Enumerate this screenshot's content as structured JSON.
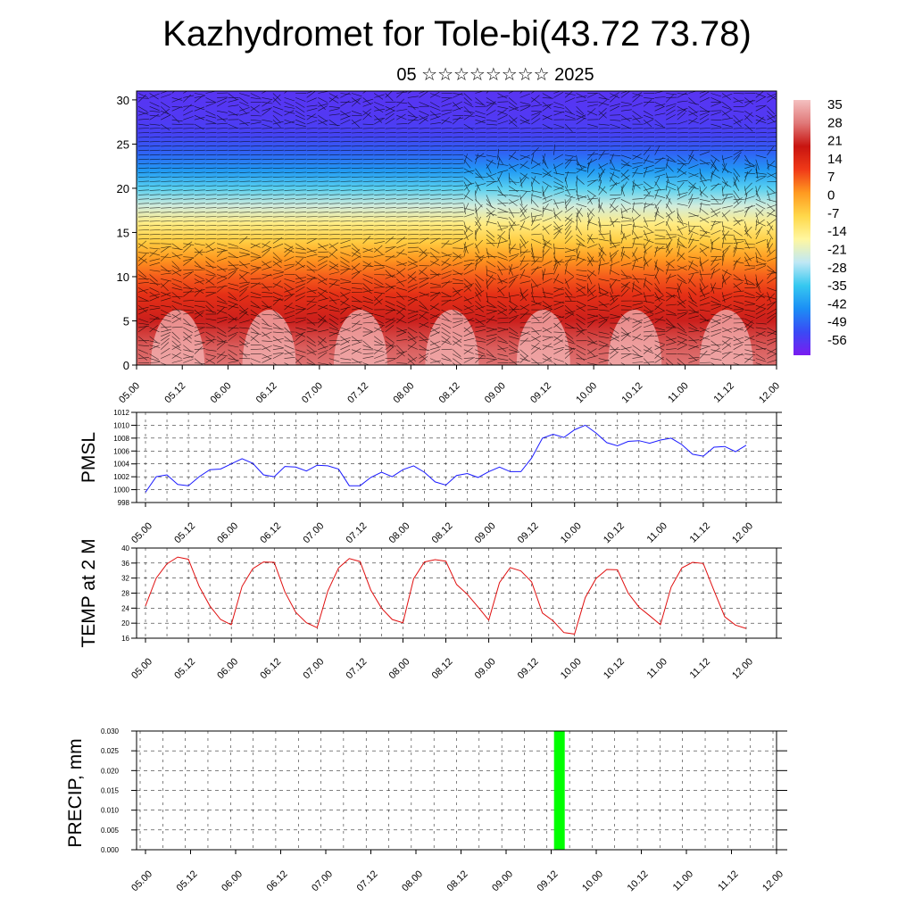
{
  "title": "Kazhydromet for Tole-bi(43.72 73.78)",
  "subtitle": "05 ☆☆☆☆☆☆☆☆ 2025",
  "time_labels": [
    "05.00",
    "05.12",
    "06.00",
    "06.12",
    "07.00",
    "07.12",
    "08.00",
    "08.12",
    "09.00",
    "09.12",
    "10.00",
    "10.12",
    "11.00",
    "11.12",
    "12.00"
  ],
  "chart_data": [
    {
      "type": "heatmap",
      "title": "",
      "ylabel": "",
      "ylim": [
        0,
        31
      ],
      "yticks": [
        "0",
        "5",
        "10",
        "15",
        "20",
        "25",
        "30"
      ],
      "colorbar": {
        "labels": [
          "35",
          "28",
          "21",
          "14",
          "7",
          "0",
          "-7",
          "-14",
          "-21",
          "-28",
          "-35",
          "-42",
          "-49",
          "-56"
        ],
        "range": [
          -63,
          42
        ],
        "colors": [
          "#7a1cf0",
          "#3a4af5",
          "#1c8ef5",
          "#36c8f0",
          "#bfe8f5",
          "#fff7a0",
          "#ffd84a",
          "#ff9a20",
          "#f03a18",
          "#c81410",
          "#e07878",
          "#f4c0c0"
        ]
      },
      "profile_description_levels": {
        "heights": [
          0,
          2,
          5,
          8,
          10,
          12,
          14,
          16,
          18,
          20,
          22,
          24,
          26,
          28,
          31
        ],
        "temps": [
          32,
          30,
          24,
          16,
          10,
          4,
          -4,
          -12,
          -22,
          -32,
          -42,
          -50,
          -55,
          -57,
          -58
        ]
      },
      "wind_barbs": "dense black barbs overlaid"
    },
    {
      "type": "line",
      "ylabel": "PMSL",
      "ylim": [
        998,
        1012
      ],
      "yticks": [
        "998",
        "1000",
        "1002",
        "1004",
        "1006",
        "1008",
        "1010",
        "1012"
      ],
      "color": "#1a1aff",
      "x": [
        "05.00",
        "05.03",
        "05.06",
        "05.09",
        "05.12",
        "05.15",
        "05.18",
        "05.21",
        "06.00",
        "06.03",
        "06.06",
        "06.09",
        "06.12",
        "06.15",
        "06.18",
        "06.21",
        "07.00",
        "07.03",
        "07.06",
        "07.09",
        "07.12",
        "07.15",
        "07.18",
        "07.21",
        "08.00",
        "08.03",
        "08.06",
        "08.09",
        "08.12",
        "08.15",
        "08.18",
        "08.21",
        "09.00",
        "09.03",
        "09.06",
        "09.09",
        "09.12",
        "09.15",
        "09.18",
        "09.21",
        "10.00",
        "10.03",
        "10.06",
        "10.09",
        "10.12",
        "10.15",
        "10.18",
        "10.21",
        "11.00",
        "11.03",
        "11.06",
        "11.09",
        "11.12",
        "11.15",
        "11.18",
        "11.21",
        "12.00"
      ],
      "values": [
        999.6,
        1002.0,
        1002.3,
        1000.8,
        1000.6,
        1002.0,
        1003.1,
        1003.2,
        1004.0,
        1004.8,
        1004.1,
        1002.3,
        1002.0,
        1003.6,
        1003.5,
        1002.9,
        1003.8,
        1003.7,
        1003.2,
        1000.6,
        1000.6,
        1001.9,
        1002.7,
        1002.0,
        1003.1,
        1003.7,
        1002.7,
        1001.2,
        1000.7,
        1002.2,
        1002.5,
        1001.9,
        1002.8,
        1003.5,
        1002.8,
        1002.8,
        1004.9,
        1008.0,
        1008.6,
        1008.1,
        1009.3,
        1010.0,
        1008.8,
        1007.3,
        1006.8,
        1007.5,
        1007.6,
        1007.2,
        1007.7,
        1008.0,
        1007.0,
        1005.5,
        1005.2,
        1006.6,
        1006.7,
        1005.9,
        1006.9
      ]
    },
    {
      "type": "line",
      "ylabel": "TEMP at 2 M",
      "ylim": [
        16,
        40
      ],
      "yticks": [
        "16",
        "20",
        "24",
        "28",
        "32",
        "36",
        "40"
      ],
      "color": "#e01010",
      "x_same_as_previous": true,
      "values": [
        24.6,
        32.0,
        35.8,
        37.6,
        37.0,
        29.8,
        24.6,
        21.0,
        19.6,
        29.8,
        34.5,
        36.3,
        36.2,
        28.3,
        22.9,
        20.1,
        18.8,
        28.6,
        34.7,
        37.2,
        36.4,
        28.8,
        24.0,
        21.0,
        20.1,
        31.8,
        36.3,
        36.9,
        36.5,
        30.3,
        27.7,
        24.3,
        20.8,
        30.8,
        34.8,
        33.9,
        31.0,
        22.7,
        20.6,
        17.5,
        17.1,
        26.8,
        31.9,
        34.3,
        34.2,
        28.0,
        24.3,
        22.0,
        19.6,
        29.6,
        34.7,
        36.2,
        35.9,
        28.7,
        21.7,
        19.5,
        18.6
      ]
    },
    {
      "type": "bar",
      "ylabel": "PRECIP, mm",
      "ylim": [
        0,
        0.03
      ],
      "yticks": [
        "0.000",
        "0.005",
        "0.010",
        "0.015",
        "0.020",
        "0.025",
        "0.030"
      ],
      "color": "#00ff00",
      "bars": [
        {
          "x": "09.15",
          "value": 0.03
        }
      ]
    }
  ]
}
